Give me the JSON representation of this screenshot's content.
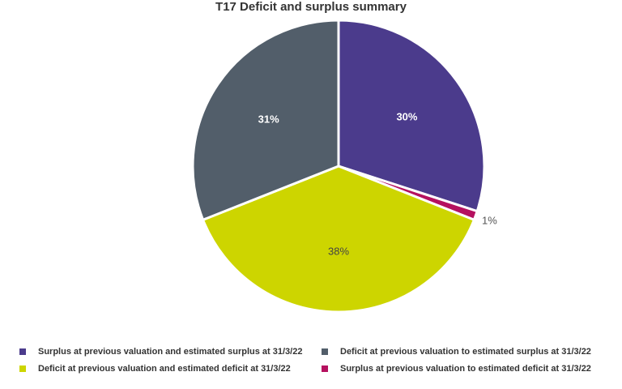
{
  "chart_data": {
    "type": "pie",
    "title": "T17 Deficit and surplus summary",
    "slices": [
      {
        "label": "Surplus at previous valuation and estimated surplus at 31/3/22",
        "value": 30,
        "display": "30%",
        "color": "#4b3b8c"
      },
      {
        "label": "Surplus at previous valuation to estimated deficit at 31/3/22",
        "value": 1,
        "display": "1%",
        "color": "#b5115f"
      },
      {
        "label": "Deficit at previous valuation and estimated deficit at 31/3/22",
        "value": 38,
        "display": "38%",
        "color": "#cdd500"
      },
      {
        "label": "Deficit at previous valuation to estimated surplus at 31/3/22",
        "value": 31,
        "display": "31%",
        "color": "#525e6a"
      }
    ],
    "legend": [
      {
        "label": "Surplus at previous valuation and estimated surplus at 31/3/22",
        "color": "#4b3b8c"
      },
      {
        "label": "Deficit at previous valuation to estimated surplus at 31/3/22",
        "color": "#525e6a"
      },
      {
        "label": "Deficit at previous valuation and estimated deficit at 31/3/22",
        "color": "#cdd500"
      },
      {
        "label": "Surplus at previous valuation to estimated deficit at 31/3/22",
        "color": "#b5115f"
      }
    ]
  }
}
